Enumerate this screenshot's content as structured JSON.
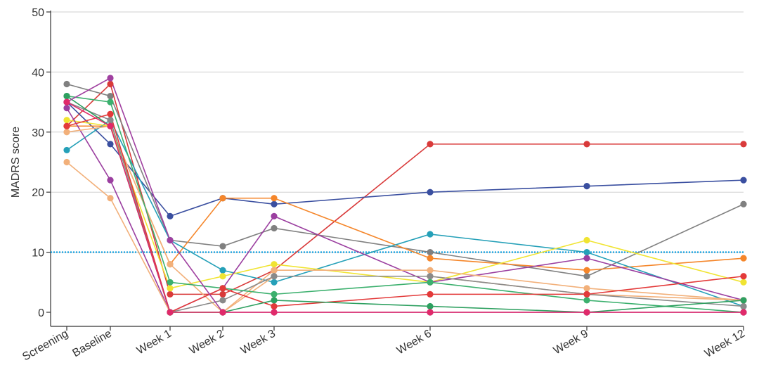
{
  "chart_data": {
    "type": "line",
    "ylabel": "MADRS score",
    "xlabel": "",
    "ylim": [
      0,
      50
    ],
    "yticks": [
      0,
      10,
      20,
      30,
      40,
      50
    ],
    "grid": true,
    "threshold": 10,
    "x": [
      "Screening",
      "Baseline",
      "Week 1",
      "Week 2",
      "Week 3",
      "Week 6",
      "Week 9",
      "Week 12"
    ],
    "x_weeks": [
      -2,
      -1,
      0.5,
      1.4,
      2.2,
      5,
      8,
      10.8
    ],
    "series": [
      {
        "color": "#d93a3a",
        "values": [
          31,
          38,
          3,
          3,
          7,
          28,
          28,
          28
        ]
      },
      {
        "color": "#3a4fa0",
        "values": [
          35,
          28,
          16,
          19,
          18,
          20,
          21,
          22
        ]
      },
      {
        "color": "#808080",
        "values": [
          38,
          36,
          12,
          11,
          14,
          10,
          6,
          18
        ]
      },
      {
        "color": "#f5862a",
        "values": [
          31,
          31,
          8,
          19,
          19,
          9,
          7,
          9
        ]
      },
      {
        "color": "#25a0b8",
        "values": [
          27,
          32,
          12,
          7,
          5,
          13,
          10,
          1
        ]
      },
      {
        "color": "#f0e432",
        "values": [
          32,
          31,
          4,
          6,
          8,
          5,
          12,
          5
        ]
      },
      {
        "color": "#9b3fa0",
        "values": [
          34,
          22,
          0,
          4,
          16,
          5,
          9,
          2
        ]
      },
      {
        "color": "#f2b07a",
        "values": [
          30,
          31,
          8,
          0,
          7,
          7,
          4,
          2
        ]
      },
      {
        "color": "#f2b07a",
        "values": [
          25,
          19,
          0,
          0,
          6,
          6,
          3,
          2
        ]
      },
      {
        "color": "#8a8a8a",
        "values": [
          35,
          32,
          0,
          2,
          6,
          6,
          3,
          1
        ]
      },
      {
        "color": "#3cb06e",
        "values": [
          36,
          35,
          5,
          4,
          3,
          5,
          2,
          0
        ]
      },
      {
        "color": "#e33a3a",
        "values": [
          31,
          33,
          0,
          4,
          1,
          3,
          3,
          6
        ]
      },
      {
        "color": "#2ea060",
        "values": [
          36,
          31,
          0,
          0,
          2,
          1,
          0,
          2
        ]
      },
      {
        "color": "#a040a0",
        "values": [
          35,
          39,
          12,
          0,
          0,
          0,
          0,
          0
        ]
      },
      {
        "color": "#e02a6a",
        "values": [
          35,
          31,
          0,
          0,
          0,
          0,
          0,
          0
        ]
      }
    ]
  }
}
